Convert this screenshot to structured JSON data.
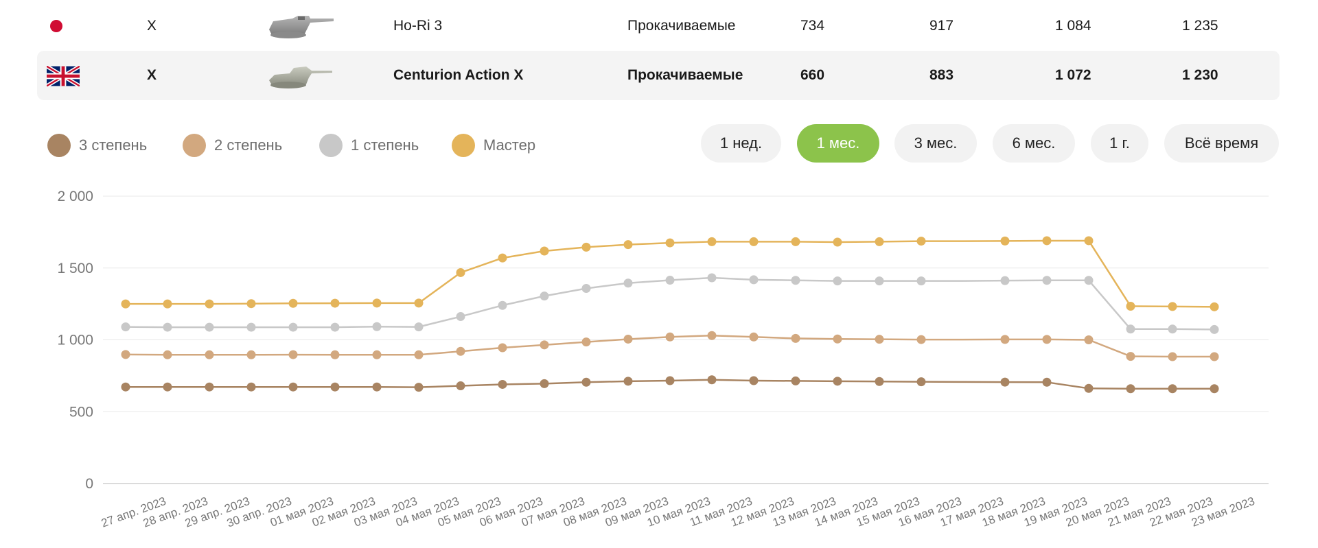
{
  "table": {
    "rows": [
      {
        "flag": "japan-flag",
        "tier": "X",
        "tank_icon": "tank-silhouette-icon",
        "name": "Ho-Ri 3",
        "type": "Прокачиваемые",
        "v3": "734",
        "v2": "917",
        "v1": "1 084",
        "master": "1 235"
      },
      {
        "flag": "uk-flag",
        "tier": "X",
        "tank_icon": "tank-silhouette-icon",
        "name": "Centurion Action X",
        "type": "Прокачиваемые",
        "v3": "660",
        "v2": "883",
        "v1": "1 072",
        "master": "1 230"
      }
    ]
  },
  "legend": [
    {
      "label": "3 степень",
      "color": "#a88462"
    },
    {
      "label": "2 степень",
      "color": "#d2a87f"
    },
    {
      "label": "1 степень",
      "color": "#c8c8c8"
    },
    {
      "label": "Мастер",
      "color": "#e4b45a"
    }
  ],
  "periods": [
    {
      "label": "1 нед.",
      "active": false
    },
    {
      "label": "1 мес.",
      "active": true
    },
    {
      "label": "3 мес.",
      "active": false
    },
    {
      "label": "6 мес.",
      "active": false
    },
    {
      "label": "1 г.",
      "active": false
    },
    {
      "label": "Всё время",
      "active": false
    }
  ],
  "chart_data": {
    "type": "line",
    "x": [
      "27 апр. 2023",
      "28 апр. 2023",
      "29 апр. 2023",
      "30 апр. 2023",
      "01 мая 2023",
      "02 мая 2023",
      "03 мая 2023",
      "04 мая 2023",
      "05 мая 2023",
      "06 мая 2023",
      "07 мая 2023",
      "08 мая 2023",
      "09 мая 2023",
      "10 мая 2023",
      "11 мая 2023",
      "12 мая 2023",
      "13 мая 2023",
      "14 мая 2023",
      "15 мая 2023",
      "16 мая 2023",
      "17 мая 2023",
      "18 мая 2023",
      "19 мая 2023",
      "20 мая 2023",
      "21 мая 2023",
      "22 мая 2023",
      "23 мая 2023"
    ],
    "points": [
      true,
      true,
      true,
      true,
      true,
      true,
      true,
      true,
      true,
      true,
      true,
      true,
      true,
      true,
      true,
      true,
      true,
      true,
      true,
      true,
      false,
      true,
      true,
      true,
      true,
      true,
      true
    ],
    "yticks": [
      0,
      500,
      1000,
      1500,
      2000
    ],
    "yticklabels": [
      "0",
      "500",
      "1 000",
      "1 500",
      "2 000"
    ],
    "ylim": [
      0,
      2000
    ],
    "grid": true,
    "series": [
      {
        "name": "3 степень",
        "color": "#a88462",
        "values": [
          672,
          672,
          672,
          672,
          672,
          672,
          672,
          670,
          680,
          690,
          695,
          705,
          712,
          716,
          722,
          716,
          714,
          712,
          710,
          708,
          707,
          706,
          705,
          662,
          660,
          660,
          660
        ]
      },
      {
        "name": "2 степень",
        "color": "#d2a87f",
        "values": [
          898,
          896,
          896,
          896,
          897,
          896,
          896,
          896,
          920,
          945,
          965,
          985,
          1005,
          1020,
          1030,
          1020,
          1010,
          1006,
          1004,
          1002,
          1002,
          1003,
          1003,
          1000,
          885,
          883,
          883
        ]
      },
      {
        "name": "1 степень",
        "color": "#c8c8c8",
        "values": [
          1090,
          1088,
          1088,
          1088,
          1088,
          1088,
          1092,
          1090,
          1162,
          1240,
          1305,
          1358,
          1395,
          1415,
          1432,
          1418,
          1414,
          1410,
          1410,
          1410,
          1410,
          1412,
          1414,
          1414,
          1075,
          1075,
          1072
        ]
      },
      {
        "name": "Мастер",
        "color": "#e4b45a",
        "values": [
          1250,
          1250,
          1250,
          1252,
          1254,
          1255,
          1256,
          1256,
          1468,
          1570,
          1618,
          1645,
          1663,
          1675,
          1683,
          1683,
          1683,
          1680,
          1683,
          1687,
          1687,
          1688,
          1690,
          1690,
          1234,
          1232,
          1230
        ]
      }
    ]
  }
}
